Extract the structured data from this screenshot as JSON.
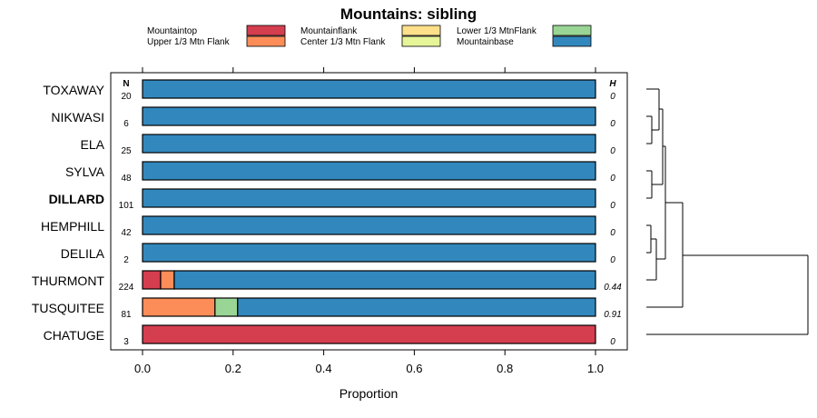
{
  "chart_data": {
    "type": "bar",
    "orientation": "horizontal",
    "stacked": true,
    "title": "Mountains: sibling",
    "xlabel": "Proportion",
    "xlim": [
      0,
      1
    ],
    "xticks": [
      "0.0",
      "0.2",
      "0.4",
      "0.6",
      "0.8",
      "1.0"
    ],
    "n_header": "N",
    "h_header": "H",
    "legend": [
      {
        "name": "Mountaintop",
        "color": "#d53e4f"
      },
      {
        "name": "Upper 1/3 Mtn Flank",
        "color": "#fc8d59"
      },
      {
        "name": "Mountainflank",
        "color": "#fee08b"
      },
      {
        "name": "Center 1/3 Mtn Flank",
        "color": "#e6f598"
      },
      {
        "name": "Lower 1/3 MtnFlank",
        "color": "#99d594"
      },
      {
        "name": "Mountainbase",
        "color": "#3288bd"
      }
    ],
    "categories": [
      {
        "name": "TOXAWAY",
        "n": "20",
        "h": "0",
        "bold": false,
        "values": [
          0,
          0,
          0,
          0,
          0,
          1
        ]
      },
      {
        "name": "NIKWASI",
        "n": "6",
        "h": "0",
        "bold": false,
        "values": [
          0,
          0,
          0,
          0,
          0,
          1
        ]
      },
      {
        "name": "ELA",
        "n": "25",
        "h": "0",
        "bold": false,
        "values": [
          0,
          0,
          0,
          0,
          0,
          1
        ]
      },
      {
        "name": "SYLVA",
        "n": "48",
        "h": "0",
        "bold": false,
        "values": [
          0,
          0,
          0,
          0,
          0,
          1
        ]
      },
      {
        "name": "DILLARD",
        "n": "101",
        "h": "0",
        "bold": true,
        "values": [
          0,
          0,
          0,
          0,
          0,
          1
        ]
      },
      {
        "name": "HEMPHILL",
        "n": "42",
        "h": "0",
        "bold": false,
        "values": [
          0,
          0,
          0,
          0,
          0,
          1
        ]
      },
      {
        "name": "DELILA",
        "n": "2",
        "h": "0",
        "bold": false,
        "values": [
          0,
          0,
          0,
          0,
          0,
          1
        ]
      },
      {
        "name": "THURMONT",
        "n": "224",
        "h": "0.44",
        "bold": false,
        "values": [
          0.04,
          0.03,
          0,
          0,
          0,
          0.93
        ]
      },
      {
        "name": "TUSQUITEE",
        "n": "81",
        "h": "0.91",
        "bold": false,
        "values": [
          0,
          0.16,
          0,
          0,
          0.05,
          0.79
        ]
      },
      {
        "name": "CHATUGE",
        "n": "3",
        "h": "0",
        "bold": false,
        "values": [
          1,
          0,
          0,
          0,
          0,
          0
        ]
      }
    ]
  }
}
